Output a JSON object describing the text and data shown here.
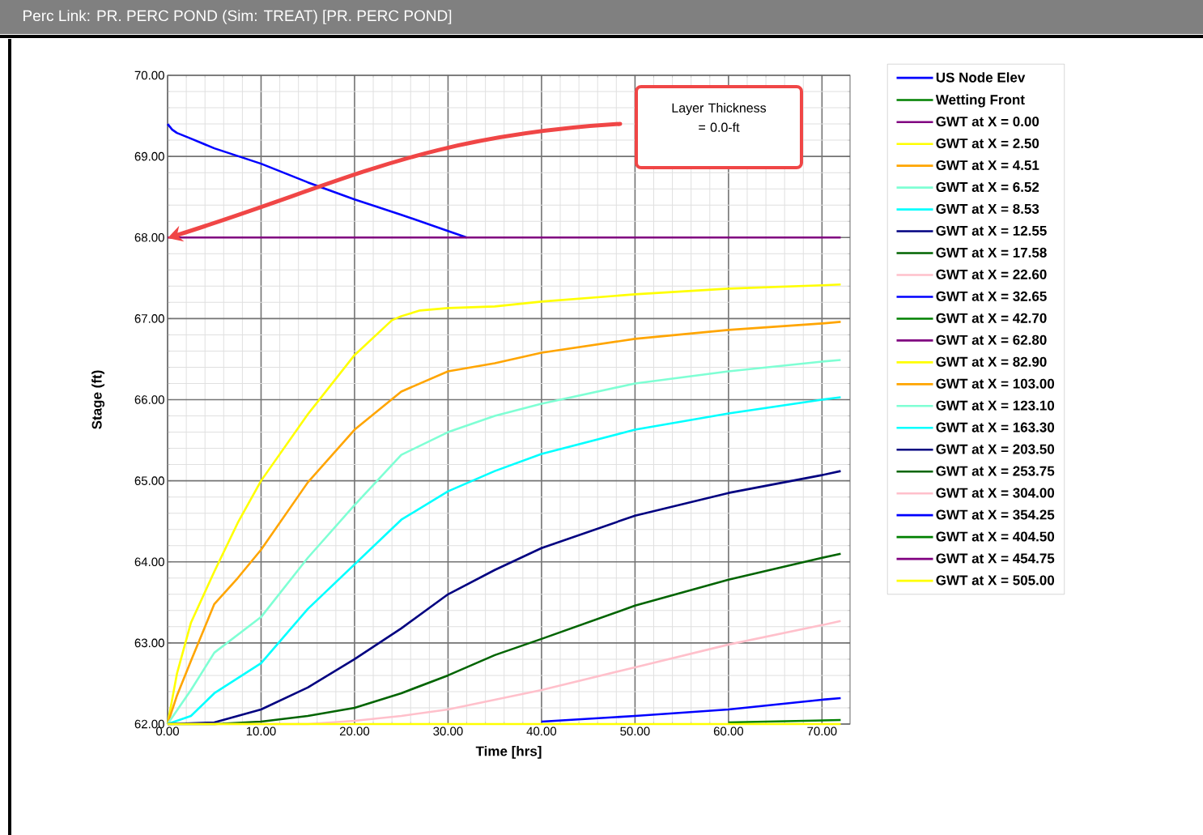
{
  "chart_data": {
    "type": "line",
    "title": "Perc Link: PR. PERC POND  (Sim: TREAT) [PR. PERC POND]",
    "xlabel": "Time [hrs]",
    "ylabel": "Stage (ft)",
    "xlim": [
      0,
      73
    ],
    "ylim": [
      62,
      70
    ],
    "xticks": [
      {
        "value": 0,
        "label": "0.00"
      },
      {
        "value": 10,
        "label": "10.00"
      },
      {
        "value": 20,
        "label": "20.00"
      },
      {
        "value": 30,
        "label": "30.00"
      },
      {
        "value": 40,
        "label": "40.00"
      },
      {
        "value": 50,
        "label": "50.00"
      },
      {
        "value": 60,
        "label": "60.00"
      },
      {
        "value": 70,
        "label": "70.00"
      }
    ],
    "yticks": [
      {
        "value": 62,
        "label": "62.00"
      },
      {
        "value": 63,
        "label": "63.00"
      },
      {
        "value": 64,
        "label": "64.00"
      },
      {
        "value": 65,
        "label": "65.00"
      },
      {
        "value": 66,
        "label": "66.00"
      },
      {
        "value": 67,
        "label": "67.00"
      },
      {
        "value": 68,
        "label": "68.00"
      },
      {
        "value": 69,
        "label": "69.00"
      },
      {
        "value": 70,
        "label": "70.00"
      }
    ],
    "grid": true,
    "legend": "right",
    "annotations": [
      "Layer Thickness = 0.0-ft"
    ],
    "series": [
      {
        "name": "US Node Elev",
        "color": "#0000ff",
        "x": [
          0,
          0.5,
          1,
          2.5,
          5,
          10,
          15,
          20,
          25,
          30,
          32
        ],
        "values": [
          69.4,
          69.33,
          69.29,
          69.22,
          69.1,
          68.91,
          68.68,
          68.47,
          68.28,
          68.08,
          68.0
        ]
      },
      {
        "name": "Wetting Front",
        "color": "#008000"
      },
      {
        "name": "GWT at X = 0.00",
        "color": "#800080",
        "x": [
          0,
          72
        ],
        "values": [
          68,
          68
        ]
      },
      {
        "name": "GWT at X = 2.50",
        "color": "#ffff00",
        "x": [
          0,
          1,
          2.5,
          5,
          7.5,
          10,
          15,
          20,
          24,
          25,
          27,
          30,
          35,
          40,
          50,
          60,
          70,
          72
        ],
        "values": [
          62,
          62.62,
          63.25,
          63.88,
          64.48,
          65.0,
          65.82,
          66.55,
          66.98,
          67.03,
          67.1,
          67.13,
          67.15,
          67.21,
          67.3,
          67.37,
          67.41,
          67.42
        ]
      },
      {
        "name": "GWT at X = 4.51",
        "color": "#ffa500",
        "x": [
          0,
          1,
          2.5,
          5,
          7.5,
          10,
          15,
          20,
          25,
          30,
          35,
          40,
          50,
          60,
          70,
          72
        ],
        "values": [
          62,
          62.35,
          62.78,
          63.48,
          63.8,
          64.15,
          64.98,
          65.63,
          66.1,
          66.35,
          66.45,
          66.58,
          66.75,
          66.86,
          66.94,
          66.96
        ]
      },
      {
        "name": "GWT at X = 6.52",
        "color": "#7fffd4",
        "x": [
          0,
          2.5,
          5,
          10,
          15,
          20,
          25,
          30,
          35,
          40,
          50,
          60,
          70,
          72
        ],
        "values": [
          62,
          62.42,
          62.88,
          63.32,
          64.05,
          64.7,
          65.32,
          65.6,
          65.8,
          65.95,
          66.2,
          66.35,
          66.47,
          66.49
        ]
      },
      {
        "name": "GWT at X = 8.53",
        "color": "#00ffff",
        "x": [
          0,
          2.5,
          5,
          10,
          15,
          20,
          25,
          30,
          35,
          40,
          50,
          60,
          70,
          72
        ],
        "values": [
          62,
          62.1,
          62.38,
          62.75,
          63.42,
          63.97,
          64.52,
          64.87,
          65.12,
          65.33,
          65.63,
          65.83,
          66.0,
          66.03
        ]
      },
      {
        "name": "GWT at X = 12.55",
        "color": "#000080",
        "x": [
          0,
          5,
          7.5,
          10,
          15,
          20,
          25,
          30,
          35,
          40,
          50,
          60,
          70,
          72
        ],
        "values": [
          62,
          62.02,
          62.1,
          62.18,
          62.45,
          62.8,
          63.18,
          63.6,
          63.9,
          64.17,
          64.57,
          64.85,
          65.07,
          65.12
        ]
      },
      {
        "name": "GWT at X = 17.58",
        "color": "#006400",
        "x": [
          0,
          5,
          10,
          15,
          20,
          25,
          30,
          35,
          40,
          50,
          60,
          70,
          72
        ],
        "values": [
          62,
          62.0,
          62.03,
          62.1,
          62.2,
          62.38,
          62.6,
          62.85,
          63.05,
          63.46,
          63.78,
          64.05,
          64.1
        ]
      },
      {
        "name": "GWT at X = 22.60",
        "color": "#ffc0cb",
        "x": [
          0,
          15,
          20,
          25,
          30,
          35,
          40,
          50,
          60,
          70,
          72
        ],
        "values": [
          62,
          62.0,
          62.04,
          62.1,
          62.18,
          62.3,
          62.42,
          62.7,
          62.98,
          63.22,
          63.27
        ]
      },
      {
        "name": "GWT at X = 32.65",
        "color": "#0000ff",
        "x": [
          40,
          50,
          60,
          70,
          72
        ],
        "values": [
          62.03,
          62.1,
          62.18,
          62.3,
          62.32
        ]
      },
      {
        "name": "GWT at X = 42.70",
        "color": "#008000",
        "x": [
          60,
          72
        ],
        "values": [
          62.02,
          62.05
        ]
      },
      {
        "name": "GWT at X = 62.80",
        "color": "#800080"
      },
      {
        "name": "GWT at X = 82.90",
        "color": "#ffff00"
      },
      {
        "name": "GWT at X = 103.00",
        "color": "#ffa500"
      },
      {
        "name": "GWT at X = 123.10",
        "color": "#7fffd4"
      },
      {
        "name": "GWT at X = 163.30",
        "color": "#00ffff"
      },
      {
        "name": "GWT at X = 203.50",
        "color": "#000080"
      },
      {
        "name": "GWT at X = 253.75",
        "color": "#006400"
      },
      {
        "name": "GWT at X = 304.00",
        "color": "#ffc0cb"
      },
      {
        "name": "GWT at X = 354.25",
        "color": "#0000ff"
      },
      {
        "name": "GWT at X = 404.50",
        "color": "#008000"
      },
      {
        "name": "GWT at X = 454.75",
        "color": "#800080"
      },
      {
        "name": "GWT at X = 505.00",
        "color": "#ffff00",
        "x": [
          0,
          72
        ],
        "values": [
          62,
          62
        ]
      }
    ]
  }
}
